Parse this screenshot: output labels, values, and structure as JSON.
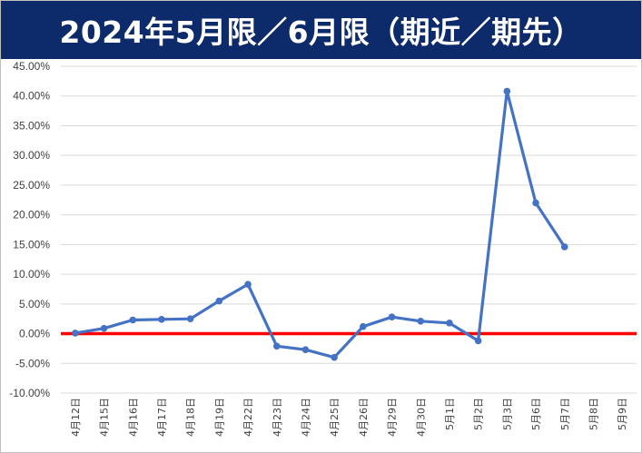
{
  "title": "2024年5月限／6月限（期近／期先）",
  "chart_data": {
    "type": "line",
    "title": "2024年5月限／6月限（期近／期先）",
    "categories": [
      "4月12日",
      "4月15日",
      "4月16日",
      "4月17日",
      "4月18日",
      "4月19日",
      "4月22日",
      "4月23日",
      "4月24日",
      "4月25日",
      "4月26日",
      "4月29日",
      "4月30日",
      "5月1日",
      "5月2日",
      "5月3日",
      "5月6日",
      "5月7日",
      "5月8日",
      "5月9日"
    ],
    "series": [
      {
        "values": [
          0.1,
          0.9,
          2.3,
          2.4,
          2.5,
          5.5,
          8.3,
          -2.1,
          -2.7,
          -4.0,
          1.2,
          2.8,
          2.1,
          1.8,
          -1.2,
          40.8,
          22.0,
          14.6,
          null,
          null
        ],
        "color": "#4472c4"
      }
    ],
    "yticks": [
      "45.00%",
      "40.00%",
      "35.00%",
      "30.00%",
      "25.00%",
      "20.00%",
      "15.00%",
      "10.00%",
      "5.00%",
      "0.00%",
      "-5.00%",
      "-10.00%"
    ],
    "ylim": [
      -10,
      45
    ],
    "grid": true,
    "zero_line_color": "#ff0000",
    "xlabel": "",
    "ylabel": ""
  }
}
